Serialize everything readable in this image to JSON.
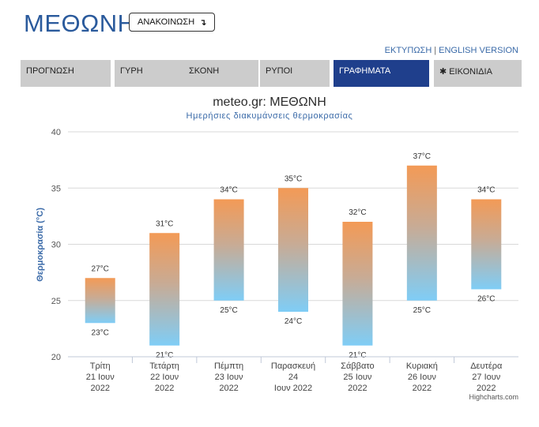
{
  "header": {
    "title": "ΜΕΘΩΝΗ",
    "announce_label": "ΑΝΑΚΟΙΝΩΣΗ",
    "announce_icon": "arrow-icon"
  },
  "top_links": {
    "print": "ΕΚΤΥΠΩΣΗ",
    "separator": "|",
    "english": "ENGLISH VERSION"
  },
  "tabs": [
    {
      "label": "ΠΡΟΓΝΩΣΗ",
      "active": false
    },
    {
      "label": "ΓΥΡΗ",
      "active": false
    },
    {
      "label": "ΣΚΟΝΗ",
      "active": false
    },
    {
      "label": "ΡΥΠΟΙ",
      "active": false
    },
    {
      "label": "ΓΡΑΦΗΜΑΤΑ",
      "active": true
    },
    {
      "label": "ΕΙΚΟΝΙΔΙΑ",
      "active": false,
      "icon": "gear-icon"
    }
  ],
  "colors": {
    "accent": "#1f3f8c",
    "tab_bg": "#cccccc",
    "bar_top": "#f39a56",
    "bar_bottom": "#7fcdf6",
    "label_blue": "#3a6aa8"
  },
  "chart_data": {
    "type": "bar",
    "subtype": "columnrange",
    "title": "meteo.gr: ΜΕΘΩΝΗ",
    "subtitle": "Ημερήσιες διακυμάνσεις θερμοκρασίας",
    "ylabel": "Θερμοκρασία (°C)",
    "ylim": [
      20,
      40
    ],
    "yticks": [
      "20",
      "25",
      "30",
      "35",
      "40"
    ],
    "grid": true,
    "categories": [
      [
        "Τρίτη",
        "21 Ιουν",
        "2022"
      ],
      [
        "Τετάρτη",
        "22 Ιουν",
        "2022"
      ],
      [
        "Πέμπτη",
        "23 Ιουν",
        "2022"
      ],
      [
        "Παρασκευή",
        "24",
        "Ιουν 2022"
      ],
      [
        "Σάββατο",
        "25 Ιουν",
        "2022"
      ],
      [
        "Κυριακή",
        "26 Ιουν",
        "2022"
      ],
      [
        "Δευτέρα",
        "27 Ιουν",
        "2022"
      ]
    ],
    "series": [
      {
        "values": [
          [
            23,
            27
          ],
          [
            21,
            31
          ],
          [
            25,
            34
          ],
          [
            24,
            35
          ],
          [
            21,
            32
          ],
          [
            25,
            37
          ],
          [
            26,
            34
          ]
        ]
      }
    ],
    "low_labels": [
      "23°C",
      "21°C",
      "25°C",
      "24°C",
      "21°C",
      "25°C",
      "26°C"
    ],
    "high_labels": [
      "27°C",
      "31°C",
      "34°C",
      "35°C",
      "32°C",
      "37°C",
      "34°C"
    ]
  },
  "credits": "Highcharts.com"
}
